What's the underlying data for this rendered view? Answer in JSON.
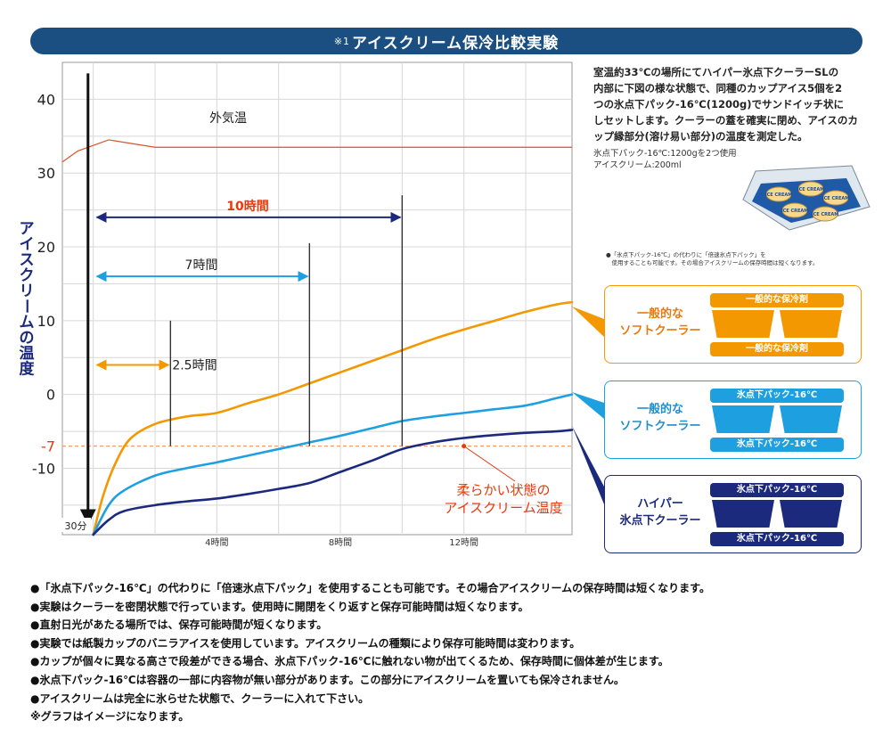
{
  "header": {
    "note_mark": "※1",
    "title": "アイスクリーム保冷比較実験"
  },
  "description": {
    "lines": [
      "室温約33℃の場所にてハイパー氷点下クーラーSLの",
      "内部に下図の様な状態で、同種のカップアイス5個を2",
      "つの氷点下パック-16℃(1200g)でサンドイッチ状に",
      "しセットします。クーラーの蓋を確実に閉め、アイスのカ",
      "ップ縁部分(溶け易い部分)の温度を測定した。"
    ],
    "spec_lines": [
      "氷点下パック-16℃:1200gを2つ使用",
      "アイスクリーム:200ml"
    ],
    "cup_label": "ICE CREAM",
    "caption_lines": [
      "●「氷点下パック-16℃」の代わりに「倍速氷点下パック」を",
      "　使用することも可能です。その場合アイスクリームの保存時間は短くなります。"
    ]
  },
  "colors": {
    "title_bar": "#1b4f82",
    "general_coolant": "#f39800",
    "soft_with_pack": "#1ea0e0",
    "hyper": "#1b2a7c",
    "outside_temp": "#d9532b",
    "threshold": "#f0a070",
    "grid": "#d8d8d8",
    "red_text": "#e8380d"
  },
  "chart_data": {
    "type": "line",
    "ylabel": "アイスクリームの温度",
    "ylim": [
      -19,
      45
    ],
    "xlim": [
      -1,
      15.5
    ],
    "yticks": [
      40,
      30,
      20,
      10,
      0,
      -10
    ],
    "threshold": {
      "value": -7,
      "label": "-7"
    },
    "x_ticks": [
      {
        "x": 4,
        "label": "4時間"
      },
      {
        "x": 8,
        "label": "8時間"
      },
      {
        "x": 12,
        "label": "12時間"
      }
    ],
    "start_marker": {
      "x": -0.17,
      "label": "30分"
    },
    "outside_temp": {
      "label": "外気温",
      "points": [
        [
          -1,
          31.5
        ],
        [
          -0.5,
          33
        ],
        [
          0.5,
          34.5
        ],
        [
          2,
          33.5
        ],
        [
          15.5,
          33.5
        ]
      ]
    },
    "series": [
      {
        "key": "general",
        "points": [
          [
            0,
            -19
          ],
          [
            0.3,
            -14
          ],
          [
            0.7,
            -9.5
          ],
          [
            1.2,
            -6
          ],
          [
            2,
            -4
          ],
          [
            3,
            -3
          ],
          [
            4,
            -2.5
          ],
          [
            5,
            -1.2
          ],
          [
            6,
            0
          ],
          [
            7,
            1.5
          ],
          [
            8,
            3
          ],
          [
            9,
            4.5
          ],
          [
            10,
            6
          ],
          [
            11,
            7.5
          ],
          [
            12,
            8.8
          ],
          [
            13,
            10
          ],
          [
            14,
            11.2
          ],
          [
            15,
            12.2
          ],
          [
            15.5,
            12.5
          ]
        ]
      },
      {
        "key": "soft_pack",
        "points": [
          [
            0,
            -19
          ],
          [
            0.5,
            -15
          ],
          [
            1,
            -13
          ],
          [
            2,
            -11
          ],
          [
            3,
            -10
          ],
          [
            4,
            -9.2
          ],
          [
            5,
            -8.3
          ],
          [
            6,
            -7.4
          ],
          [
            7,
            -6.5
          ],
          [
            8,
            -5.6
          ],
          [
            9,
            -4.6
          ],
          [
            10,
            -3.6
          ],
          [
            11,
            -3
          ],
          [
            12,
            -2.5
          ],
          [
            13,
            -2
          ],
          [
            14,
            -1.5
          ],
          [
            15,
            -0.5
          ],
          [
            15.5,
            0
          ]
        ]
      },
      {
        "key": "hyper",
        "points": [
          [
            0,
            -19
          ],
          [
            0.5,
            -17
          ],
          [
            1,
            -15.8
          ],
          [
            2,
            -15
          ],
          [
            3,
            -14.5
          ],
          [
            4,
            -14.1
          ],
          [
            5,
            -13.5
          ],
          [
            6,
            -12.8
          ],
          [
            7,
            -12
          ],
          [
            8,
            -10.5
          ],
          [
            9,
            -9
          ],
          [
            10,
            -7.4
          ],
          [
            11,
            -6.5
          ],
          [
            12,
            -5.9
          ],
          [
            13,
            -5.5
          ],
          [
            14,
            -5.2
          ],
          [
            15,
            -5
          ],
          [
            15.5,
            -4.8
          ]
        ]
      }
    ],
    "duration_markers": [
      {
        "label": "2.5時間",
        "x0": 0,
        "x1": 2.5,
        "arrow_y": 4,
        "line_top": 10,
        "color_key": "general"
      },
      {
        "label": "7時間",
        "x0": 0,
        "x1": 7,
        "arrow_y": 16,
        "line_top": 20.5,
        "color_key": "soft_pack"
      },
      {
        "label": "10時間",
        "x0": 0,
        "x1": 10,
        "arrow_y": 24,
        "line_top": 27,
        "color_key": "hyper"
      }
    ],
    "annotation": {
      "lines": [
        "柔らかい状態の",
        "アイスクリーム温度"
      ],
      "point": [
        12,
        -7
      ]
    }
  },
  "panels": [
    {
      "key": "general",
      "label_lines": [
        "一般的な",
        "ソフトクーラー"
      ],
      "pack_top": "一般的な保冷剤",
      "pack_bottom": "一般的な保冷剤",
      "border": "#f39800",
      "text": "#e8790a",
      "pack": "#f39800",
      "cup": "#f39800"
    },
    {
      "key": "soft_pack",
      "label_lines": [
        "一般的な",
        "ソフトクーラー"
      ],
      "pack_top": "氷点下パック-16℃",
      "pack_bottom": "氷点下パック-16℃",
      "border": "#1ea0e0",
      "text": "#1e8ed0",
      "pack": "#1ea0e0",
      "cup": "#1ea0e0"
    },
    {
      "key": "hyper",
      "label_lines": [
        "ハイパー",
        "氷点下クーラー"
      ],
      "pack_top": "氷点下パック-16℃",
      "pack_bottom": "氷点下パック-16℃",
      "border": "#1b2a7c",
      "text": "#1b2a7c",
      "pack": "#1b2a7c",
      "cup": "#1b2a7c"
    }
  ],
  "notes": [
    "●「氷点下パック-16℃」の代わりに「倍速氷点下パック」を使用することも可能です。その場合アイスクリームの保存時間は短くなります。",
    "●実験はクーラーを密閉状態で行っています。使用時に開閉をくり返すと保存可能時間は短くなります。",
    "●直射日光があたる場所では、保存可能時間が短くなります。",
    "●実験では紙製カップのバニラアイスを使用しています。アイスクリームの種類により保存可能時間は変わります。",
    "●カップが個々に異なる高さで段差ができる場合、氷点下パック-16℃に触れない物が出てくるため、保存時間に個体差が生じます。",
    "●氷点下パック-16℃は容器の一部に内容物が無い部分があります。この部分にアイスクリームを置いても保冷されません。",
    "●アイスクリームは完全に氷らせた状態で、クーラーに入れて下さい。",
    "※グラフはイメージになります。"
  ]
}
